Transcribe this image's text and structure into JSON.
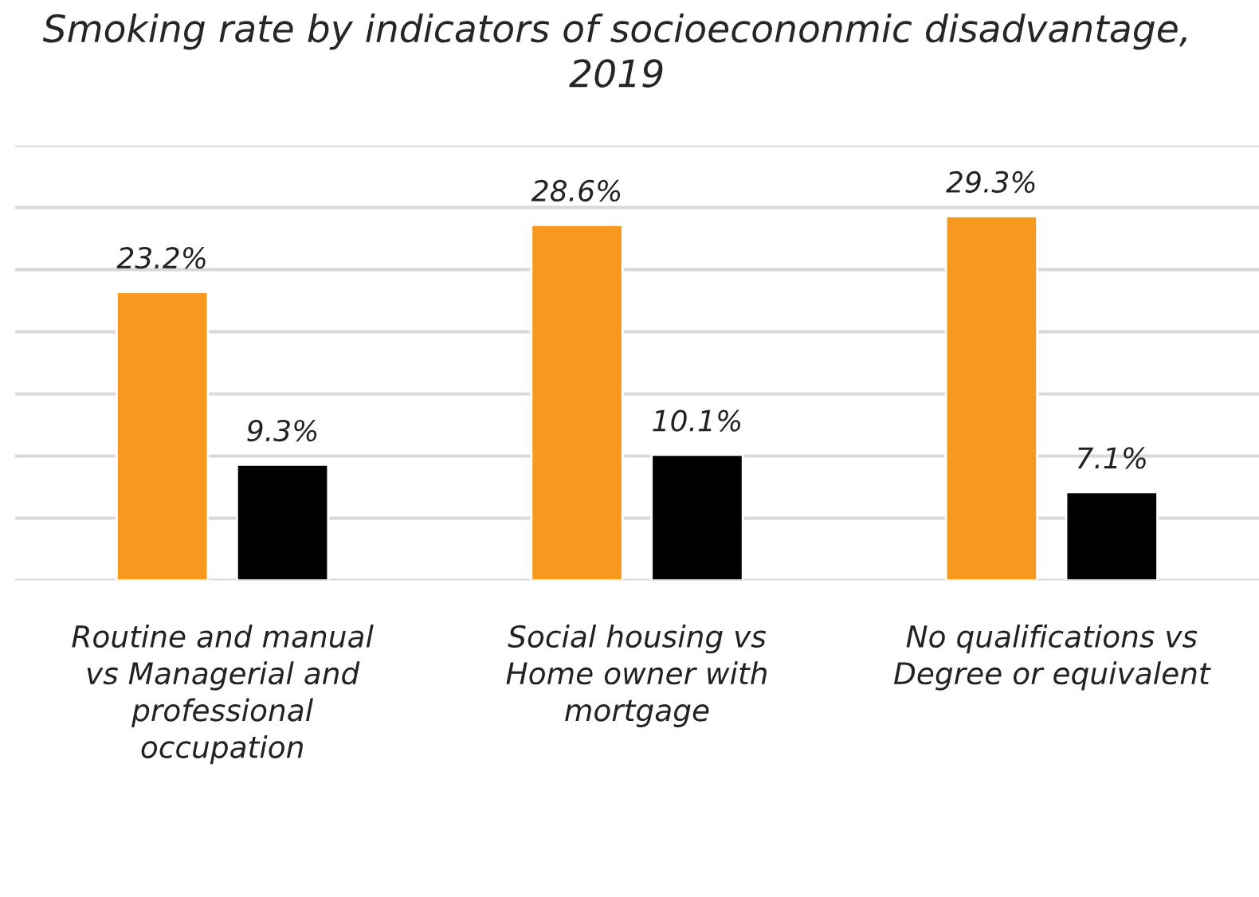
{
  "chart_data": {
    "type": "bar",
    "title": "Smoking rate by indicators of socioecononmic disadvantage, 2019",
    "categories": [
      "Routine and manual vs Managerial and professional occupation",
      "Social housing vs Home owner with mortgage",
      "No qualifications vs Degree or equivalent"
    ],
    "series": [
      {
        "color": "#f7991f",
        "values": [
          23.2,
          28.6,
          29.3
        ],
        "value_labels": [
          "23.2%",
          "28.6%",
          "29.3%"
        ]
      },
      {
        "color": "#000000",
        "values": [
          9.3,
          10.1,
          7.1
        ],
        "value_labels": [
          "9.3%",
          "10.1%",
          "7.1%"
        ]
      }
    ],
    "ylim": [
      0,
      35
    ],
    "yticks": [
      {
        "value": 0,
        "label": null
      },
      {
        "value": 5,
        "label": null
      },
      {
        "value": 10,
        "label": null
      },
      {
        "value": 15,
        "label": null
      },
      {
        "value": 20,
        "label": null
      },
      {
        "value": 25,
        "label": null
      },
      {
        "value": 30,
        "label": null
      },
      {
        "value": 35,
        "label": null
      }
    ],
    "grid": "y",
    "tick_labels": "x"
  }
}
